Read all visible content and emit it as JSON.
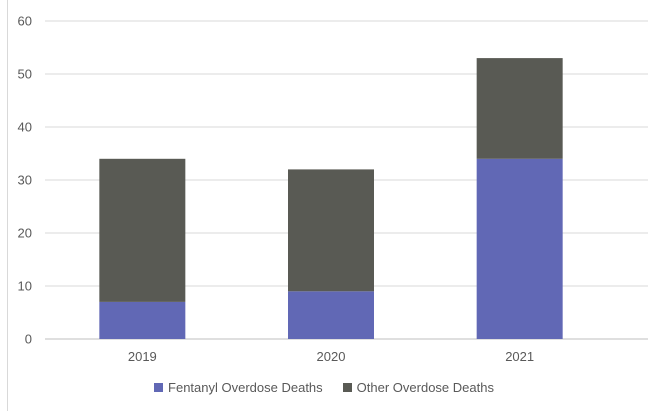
{
  "chart_data": {
    "type": "bar",
    "stacked": true,
    "categories": [
      "2019",
      "2020",
      "2021"
    ],
    "series": [
      {
        "name": "Fentanyl Overdose Deaths",
        "values": [
          7,
          9,
          34
        ],
        "color": "#6168b5"
      },
      {
        "name": "Other Overdose Deaths",
        "values": [
          27,
          23,
          19
        ],
        "color": "#595a54"
      }
    ],
    "ylim": [
      0,
      60
    ],
    "yticks": [
      "0",
      "10",
      "20",
      "30",
      "40",
      "50",
      "60"
    ],
    "grid": true,
    "legend": "bottom"
  }
}
